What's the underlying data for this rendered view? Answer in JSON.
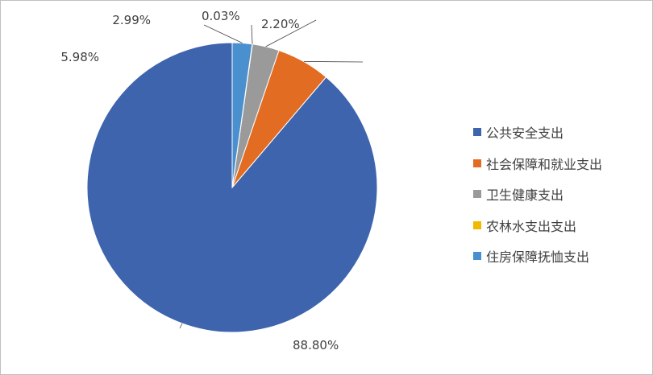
{
  "chart_data": {
    "type": "pie",
    "title": "",
    "legend_position": "right",
    "slices": [
      {
        "label": "公共安全支出",
        "value": 88.8,
        "value_label": "88.80%",
        "color": "#3e64ae"
      },
      {
        "label": "社会保障和就业支出",
        "value": 5.98,
        "value_label": "5.98%",
        "color": "#e26c22"
      },
      {
        "label": "卫生健康支出",
        "value": 2.99,
        "value_label": "2.99%",
        "color": "#9a9a9a"
      },
      {
        "label": "农林水支出支出",
        "value": 0.03,
        "value_label": "0.03%",
        "color": "#f2b800"
      },
      {
        "label": "住房保障抚恤支出",
        "value": 2.2,
        "value_label": "2.20%",
        "color": "#4a90cf"
      }
    ]
  }
}
